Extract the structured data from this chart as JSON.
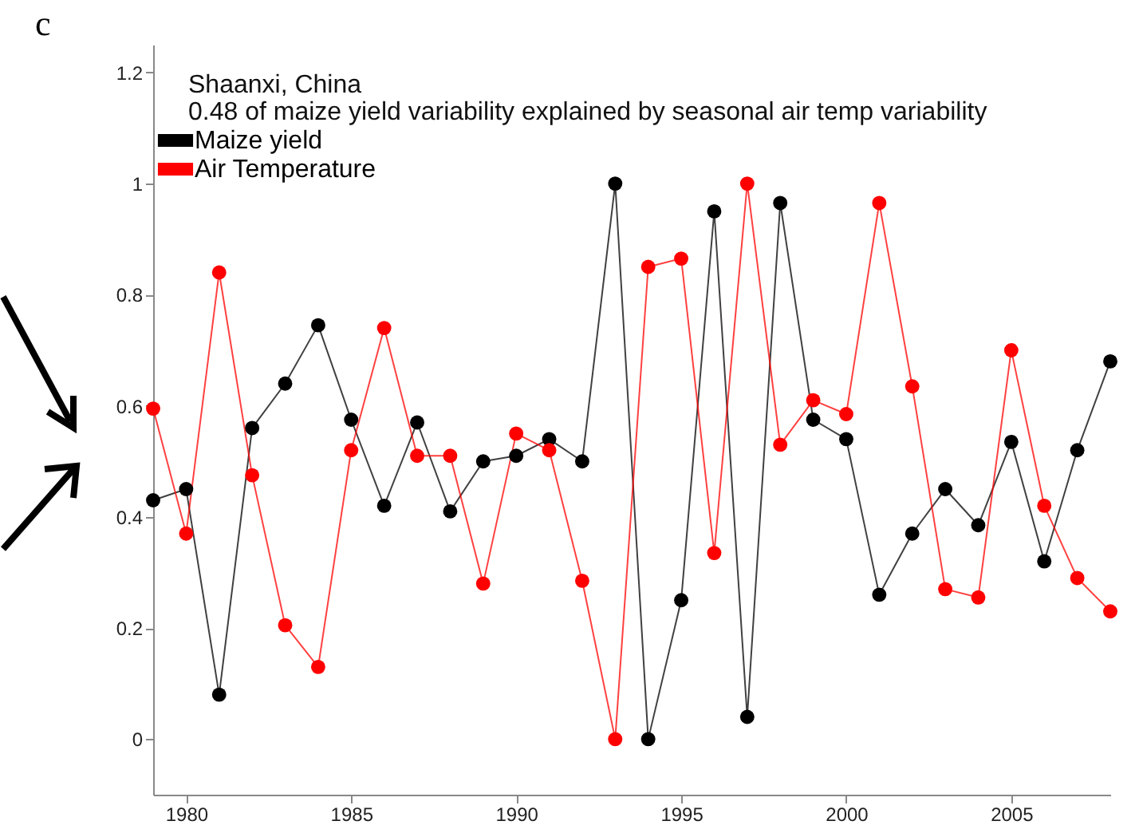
{
  "chart_data": {
    "type": "line",
    "title": "Shaanxi, China",
    "subtitle": "0.48 of maize yield variability explained by seasonal air temp variability",
    "annotations": [
      "c"
    ],
    "x": [
      1979,
      1980,
      1981,
      1982,
      1983,
      1984,
      1985,
      1986,
      1987,
      1988,
      1989,
      1990,
      1991,
      1992,
      1993,
      1994,
      1995,
      1996,
      1997,
      1998,
      1999,
      2000,
      2001,
      2002,
      2003,
      2004,
      2005,
      2006,
      2007,
      2008
    ],
    "series": [
      {
        "name": "Maize yield",
        "color": "#000000",
        "values": [
          0.43,
          0.45,
          0.08,
          0.56,
          0.64,
          0.745,
          0.575,
          0.42,
          0.57,
          0.41,
          0.5,
          0.51,
          0.54,
          0.5,
          1.0,
          0.0,
          0.25,
          0.95,
          0.04,
          0.965,
          0.575,
          0.54,
          0.26,
          0.37,
          0.45,
          0.385,
          0.535,
          0.32,
          0.52,
          0.68
        ]
      },
      {
        "name": "Air Temperature",
        "color": "#ff0000",
        "values": [
          0.595,
          0.37,
          0.84,
          0.475,
          0.205,
          0.13,
          0.52,
          0.74,
          0.51,
          0.51,
          0.28,
          0.55,
          0.52,
          0.285,
          0.0,
          0.85,
          0.865,
          0.335,
          1.0,
          0.53,
          0.61,
          0.585,
          0.965,
          0.635,
          0.27,
          0.255,
          0.7,
          0.42,
          0.29,
          0.23
        ]
      }
    ],
    "xlim": [
      1979,
      2008
    ],
    "xticks": [
      1980,
      1985,
      1990,
      1995,
      2000,
      2005
    ],
    "ylim": [
      -0.1,
      1.25
    ],
    "yticks": [
      0,
      0.2,
      0.4,
      0.6,
      0.8,
      1,
      1.2
    ],
    "grid": false,
    "legend": "top left",
    "marker": "circle",
    "line_style": "solid"
  }
}
